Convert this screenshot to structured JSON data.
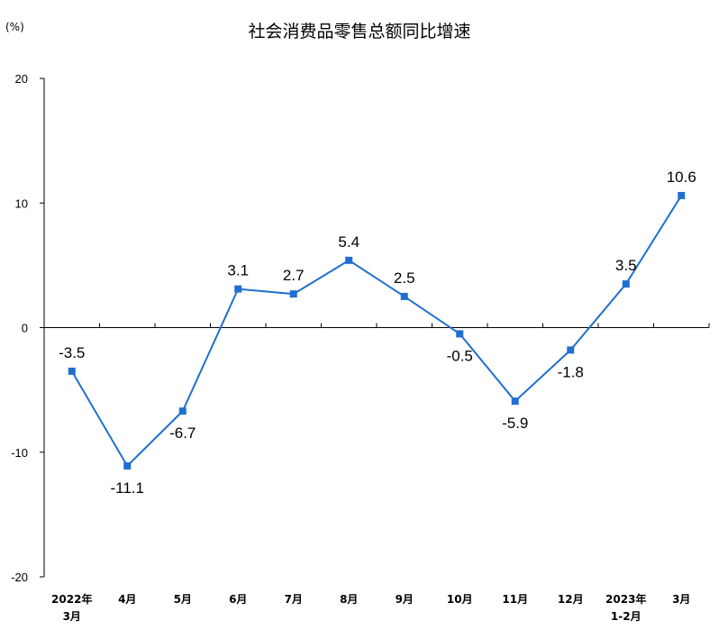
{
  "chart_data": {
    "type": "line",
    "title": "社会消费品零售总额同比增速",
    "unit_label": "(%)",
    "ylim": [
      -20,
      20
    ],
    "yticks": [
      "20",
      "10",
      "0",
      "-10",
      "-20"
    ],
    "ytick_values": [
      20,
      10,
      0,
      -10,
      -20
    ],
    "categories": [
      [
        "2022年",
        "3月"
      ],
      [
        "4月"
      ],
      [
        "5月"
      ],
      [
        "6月"
      ],
      [
        "7月"
      ],
      [
        "8月"
      ],
      [
        "9月"
      ],
      [
        "10月"
      ],
      [
        "11月"
      ],
      [
        "12月"
      ],
      [
        "2023年",
        "1-2月"
      ],
      [
        "3月"
      ]
    ],
    "series": [
      {
        "values": [
          -3.5,
          -11.1,
          -6.7,
          3.1,
          2.7,
          5.4,
          2.5,
          -0.5,
          -5.9,
          -1.8,
          3.5,
          10.6
        ],
        "labels": [
          "-3.5",
          "-11.1",
          "-6.7",
          "3.1",
          "2.7",
          "5.4",
          "2.5",
          "-0.5",
          "-5.9",
          "-1.8",
          "3.5",
          "10.6"
        ],
        "label_pos": [
          "above",
          "below",
          "below",
          "above",
          "above",
          "above",
          "above",
          "below",
          "below",
          "below",
          "above",
          "above"
        ],
        "color": "#1f6fd1"
      }
    ],
    "grid": false,
    "legend": "none"
  }
}
